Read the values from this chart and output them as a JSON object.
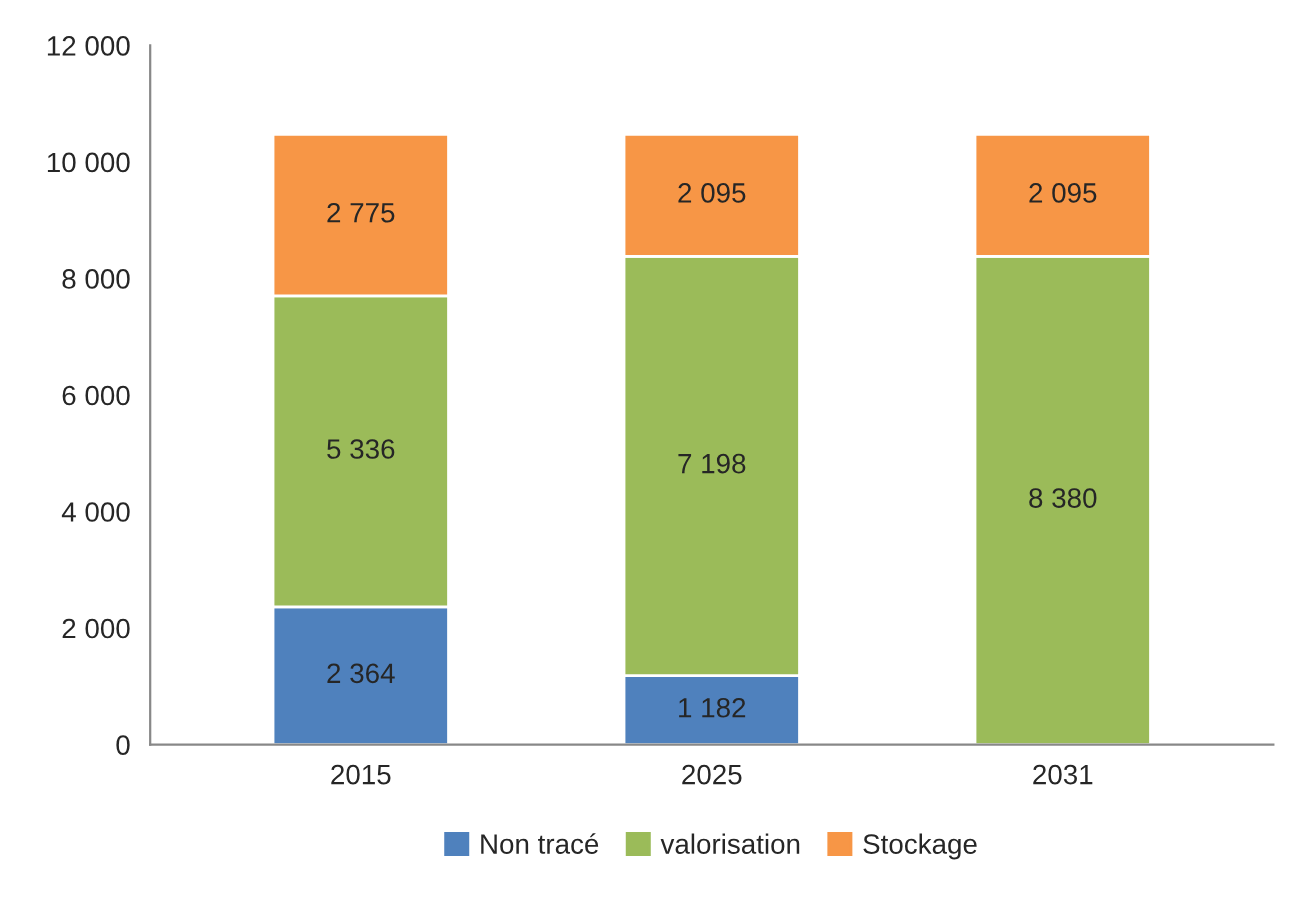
{
  "chart_data": {
    "type": "bar",
    "stacked": true,
    "categories": [
      "2015",
      "2025",
      "2031"
    ],
    "series": [
      {
        "name": "Non tracé",
        "color": "#4f81bd",
        "values": [
          2364,
          1182,
          null
        ],
        "value_labels": [
          "2 364",
          "1 182",
          null
        ]
      },
      {
        "name": "valorisation",
        "color": "#9bbb59",
        "values": [
          5336,
          7198,
          8380
        ],
        "value_labels": [
          "5 336",
          "7 198",
          "8 380"
        ]
      },
      {
        "name": "Stockage",
        "color": "#f79646",
        "values": [
          2775,
          2095,
          2095
        ],
        "value_labels": [
          "2 775",
          "2 095",
          "2 095"
        ]
      }
    ],
    "ylim": [
      0,
      12000
    ],
    "yticks": [
      0,
      {
        "value": 2000,
        "label": "2 000"
      },
      {
        "value": 4000,
        "label": "4 000"
      },
      {
        "value": 6000,
        "label": "6 000"
      },
      {
        "value": 8000,
        "label": "8 000"
      },
      {
        "value": 10000,
        "label": "10 000"
      },
      {
        "value": 12000,
        "label": "12 000"
      }
    ],
    "legend": "bottom"
  }
}
